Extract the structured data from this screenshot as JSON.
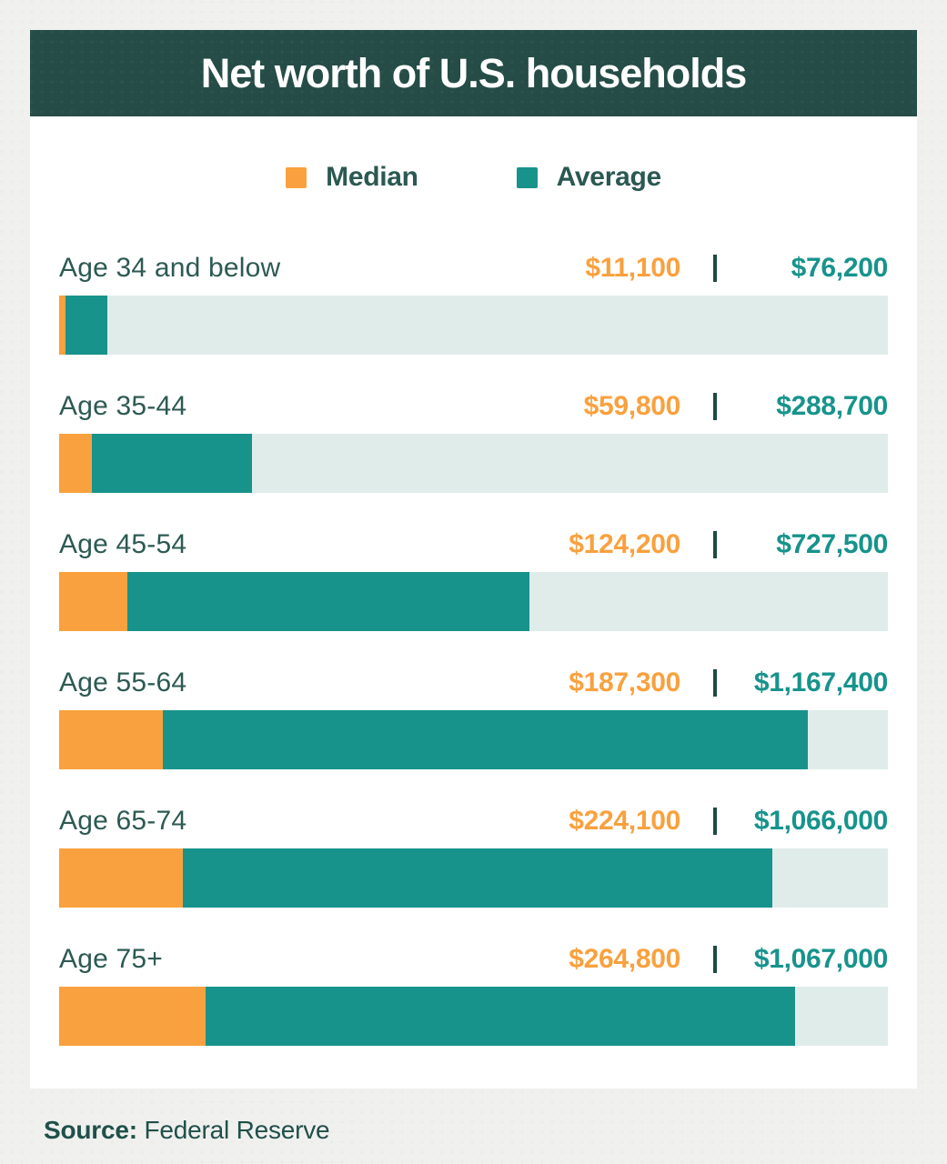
{
  "header": {
    "title": "Net worth of U.S. households"
  },
  "legend": {
    "items": [
      {
        "label": "Median",
        "color": "#F9A13E"
      },
      {
        "label": "Average",
        "color": "#17938C"
      }
    ]
  },
  "rows": [
    {
      "label": "Age 34 and below",
      "median": "$11,100",
      "average": "$76,200"
    },
    {
      "label": "Age 35-44",
      "median": "$59,800",
      "average": "$288,700"
    },
    {
      "label": "Age 45-54",
      "median": "$124,200",
      "average": "$727,500"
    },
    {
      "label": "Age 55-64",
      "median": "$187,300",
      "average": "$1,167,400"
    },
    {
      "label": "Age 65-74",
      "median": "$224,100",
      "average": "$1,066,000"
    },
    {
      "label": "Age 75+",
      "median": "$264,800",
      "average": "$1,067,000"
    }
  ],
  "footer": {
    "source_label": "Source:",
    "source_value": "Federal Reserve"
  },
  "colors": {
    "median": "#F9A13E",
    "average": "#17938C",
    "track": "#DFECEA",
    "header_bg": "#254C46",
    "text_dark": "#2D5A53",
    "background": "#F0F0EE"
  },
  "chart_data": {
    "type": "bar",
    "orientation": "horizontal",
    "stacked": true,
    "title": "Net worth of U.S. households",
    "categories": [
      "Age 34 and below",
      "Age 35-44",
      "Age 45-54",
      "Age 55-64",
      "Age 65-74",
      "Age 75+"
    ],
    "series": [
      {
        "name": "Median",
        "color": "#F9A13E",
        "values": [
          11100,
          59800,
          124200,
          187300,
          224100,
          264800
        ]
      },
      {
        "name": "Average",
        "color": "#17938C",
        "values": [
          76200,
          288700,
          727500,
          1167400,
          1066000,
          1067000
        ]
      }
    ],
    "value_labels": {
      "median": [
        "$11,100",
        "$59,800",
        "$124,200",
        "$187,300",
        "$224,100",
        "$264,800"
      ],
      "average": [
        "$76,200",
        "$288,700",
        "$727,500",
        "$1,167,400",
        "$1,066,000",
        "$1,067,000"
      ]
    },
    "xlim": [
      0,
      1500000
    ],
    "legend_position": "top",
    "grid": false,
    "source": "Federal Reserve"
  }
}
